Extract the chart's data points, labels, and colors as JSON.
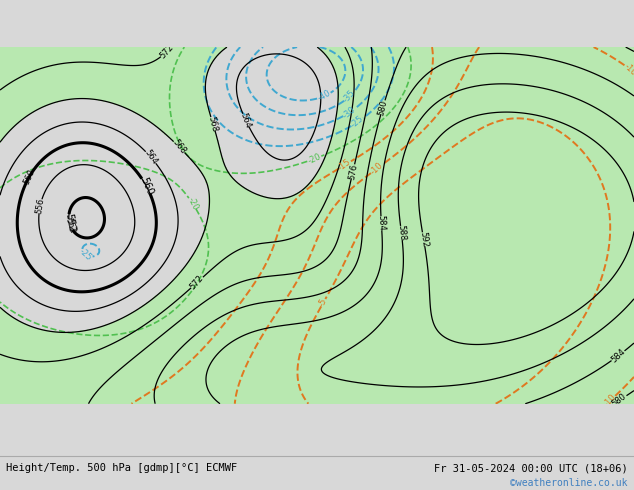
{
  "title_left": "Height/Temp. 500 hPa [gdmp][°C] ECMWF",
  "title_right": "Fr 31-05-2024 00:00 UTC (18+06)",
  "watermark": "©weatheronline.co.uk",
  "bg_color": "#d8d8d8",
  "land_color_green": "#b8e8b0",
  "z500_line_color": "#000000",
  "temp_warm_color": "#e07820",
  "temp_cold_color": "#40a8d0",
  "temp_green_color": "#50c050",
  "bottom_bar_color": "#f0f0f0",
  "text_color": "#000000",
  "link_color": "#4080c0"
}
